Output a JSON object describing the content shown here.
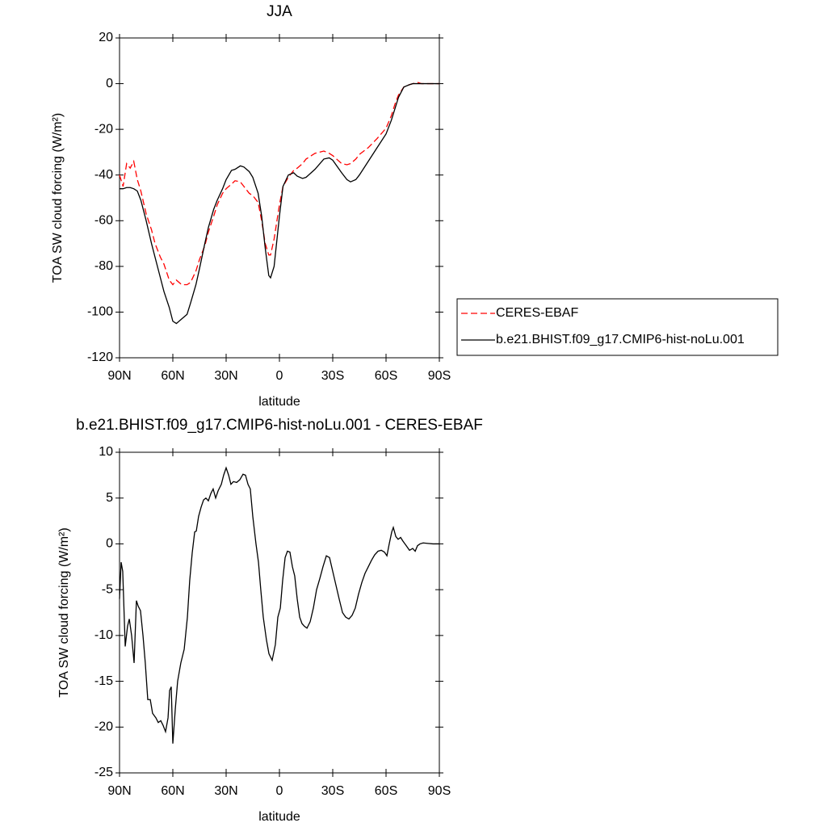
{
  "chart_data": [
    {
      "type": "line",
      "title": "JJA",
      "xlabel": "latitude",
      "ylabel": "TOA SW cloud forcing (W/m²)",
      "xlim": [
        90,
        -90
      ],
      "xticks": [
        {
          "value": 90,
          "label": "90N"
        },
        {
          "value": 60,
          "label": "60N"
        },
        {
          "value": 30,
          "label": "30N"
        },
        0,
        {
          "value": -30,
          "label": "30S"
        },
        {
          "value": -60,
          "label": "60S"
        },
        {
          "value": -90,
          "label": "90S"
        }
      ],
      "ylim": [
        -120,
        20
      ],
      "yticks": [
        -120,
        -100,
        -80,
        -60,
        -40,
        -20,
        0,
        20
      ],
      "legend": "right",
      "x": [
        90,
        88,
        86,
        84,
        82,
        80,
        78,
        75,
        72,
        70,
        67,
        65,
        62,
        60,
        58,
        55,
        52,
        50,
        47,
        45,
        42,
        40,
        37,
        35,
        32,
        30,
        27,
        25,
        22,
        20,
        17,
        15,
        12,
        10,
        8,
        6,
        5,
        3,
        0,
        -2,
        -5,
        -8,
        -10,
        -13,
        -15,
        -20,
        -25,
        -28,
        -30,
        -35,
        -38,
        -40,
        -43,
        -45,
        -50,
        -55,
        -60,
        -63,
        -65,
        -67,
        -70,
        -73,
        -75,
        -78,
        -80,
        -85,
        -90
      ],
      "series": [
        {
          "name": "CERES-EBAF",
          "color": "#ff0000",
          "line_style": "dashed",
          "values": [
            -40,
            -45,
            -35,
            -37,
            -34,
            -42,
            -47,
            -57,
            -64,
            -70,
            -76,
            -79,
            -86,
            -88,
            -86,
            -88,
            -88,
            -87,
            -82,
            -77,
            -71,
            -65,
            -58,
            -53,
            -48,
            -46,
            -44,
            -42.5,
            -43,
            -45,
            -48,
            -49,
            -52,
            -60,
            -70,
            -75,
            -75,
            -68,
            -53,
            -45,
            -41,
            -38,
            -37,
            -35,
            -33,
            -30.5,
            -29.5,
            -30.5,
            -31.5,
            -35,
            -35.5,
            -35,
            -33,
            -31,
            -28,
            -24,
            -19.5,
            -14,
            -9,
            -5,
            -1.5,
            -0.5,
            0,
            0.5,
            0,
            0,
            0
          ]
        },
        {
          "name": "b.e21.BHIST.f09_g17.CMIP6-hist-noLu.001",
          "color": "#000000",
          "line_style": "solid",
          "values": [
            -46,
            -46,
            -45.5,
            -45.5,
            -46,
            -47,
            -51,
            -60,
            -70,
            -76,
            -85,
            -91,
            -98,
            -104,
            -105,
            -103,
            -101,
            -96,
            -88,
            -81,
            -70,
            -63,
            -55,
            -51,
            -46,
            -42,
            -38,
            -37.5,
            -36,
            -36.5,
            -38.5,
            -41,
            -48,
            -58,
            -72,
            -84,
            -85,
            -80,
            -58,
            -45,
            -40,
            -39,
            -40.5,
            -41.5,
            -41,
            -37.5,
            -33,
            -32.5,
            -33.5,
            -39,
            -42,
            -43,
            -42,
            -40,
            -34,
            -28,
            -22,
            -16,
            -11,
            -6,
            -1.5,
            -0.5,
            0,
            0,
            0,
            0,
            0
          ]
        }
      ]
    },
    {
      "type": "line",
      "title": "b.e21.BHIST.f09_g17.CMIP6-hist-noLu.001 - CERES-EBAF",
      "xlabel": "latitude",
      "ylabel": "TOA SW cloud forcing (W/m²)",
      "xlim": [
        90,
        -90
      ],
      "xticks": [
        {
          "value": 90,
          "label": "90N"
        },
        {
          "value": 60,
          "label": "60N"
        },
        {
          "value": 30,
          "label": "30N"
        },
        0,
        {
          "value": -30,
          "label": "30S"
        },
        {
          "value": -60,
          "label": "60S"
        },
        {
          "value": -90,
          "label": "90S"
        }
      ],
      "ylim": [
        -25,
        10
      ],
      "yticks": [
        -25,
        -20,
        -15,
        -10,
        -5,
        0,
        5,
        10
      ],
      "x": [
        90,
        89.1,
        88.2,
        86.8,
        85.5,
        84.5,
        83.2,
        81.8,
        80.5,
        79.5,
        78.2,
        76.8,
        75.5,
        74.1,
        72.7,
        71.4,
        69.5,
        68.2,
        66.8,
        65.5,
        64.1,
        62.7,
        61.8,
        60.9,
        60,
        58.6,
        57.3,
        55.5,
        53.6,
        51.8,
        50.5,
        49.1,
        47.7,
        46.8,
        45.5,
        44.1,
        42.7,
        41.4,
        40,
        38.6,
        37.3,
        35.9,
        34.5,
        32.7,
        31.4,
        30,
        28.6,
        27.3,
        25.9,
        24.1,
        22.3,
        20.5,
        19.1,
        17.7,
        16.4,
        15,
        13.2,
        11.8,
        10.5,
        9.1,
        7.3,
        5.9,
        4.1,
        2.3,
        0.9,
        -0.5,
        -1.8,
        -3.2,
        -4.5,
        -5.9,
        -7.3,
        -8.6,
        -10,
        -11.4,
        -12.7,
        -14.1,
        -15.5,
        -17.3,
        -19.1,
        -20.9,
        -22.7,
        -24.5,
        -26.4,
        -28.2,
        -30,
        -31.8,
        -33.6,
        -35.5,
        -37.3,
        -39.1,
        -40.9,
        -42.7,
        -44.5,
        -46.4,
        -48.2,
        -50,
        -51.8,
        -53.6,
        -55.5,
        -57.3,
        -59.1,
        -60.5,
        -61.8,
        -63.2,
        -64.1,
        -65.5,
        -66.8,
        -68.2,
        -69.5,
        -71.4,
        -73.2,
        -75,
        -76.4,
        -77.7,
        -79.1,
        -80.9,
        -83.6,
        -86.4,
        -90
      ],
      "series": [
        {
          "color": "#000000",
          "line_style": "solid",
          "values": [
            -6,
            -2,
            -3,
            -11.2,
            -9,
            -8.2,
            -10,
            -13,
            -6.2,
            -6.8,
            -7.3,
            -10,
            -13,
            -17,
            -17,
            -18.5,
            -19,
            -19.5,
            -19.3,
            -19.8,
            -20.5,
            -19,
            -16,
            -15.6,
            -21.8,
            -18,
            -15,
            -13,
            -11.5,
            -8,
            -4,
            -1,
            1.3,
            1.4,
            3,
            4,
            4.8,
            5,
            4.7,
            5.5,
            6,
            5,
            5.8,
            6.5,
            7.5,
            8.3,
            7.5,
            6.5,
            6.8,
            6.7,
            7,
            7.6,
            7.5,
            6.5,
            6,
            3,
            0,
            -2,
            -5,
            -8,
            -10.5,
            -12,
            -12.7,
            -11,
            -8,
            -7,
            -4,
            -1.5,
            -0.8,
            -0.9,
            -2.5,
            -3.5,
            -6,
            -8,
            -8.7,
            -9,
            -9.2,
            -8.5,
            -7,
            -5,
            -3.8,
            -2.5,
            -1.3,
            -1.5,
            -3,
            -4.5,
            -6,
            -7.5,
            -8,
            -8.2,
            -7.8,
            -7,
            -5.5,
            -4.2,
            -3.2,
            -2.5,
            -1.8,
            -1.2,
            -0.8,
            -0.7,
            -0.9,
            -1.3,
            0,
            1.3,
            1.8,
            0.8,
            0.5,
            0.7,
            0.3,
            -0.2,
            -0.7,
            -0.5,
            -0.8,
            -0.2,
            0,
            0.1,
            0.05,
            0,
            0
          ]
        }
      ]
    }
  ]
}
